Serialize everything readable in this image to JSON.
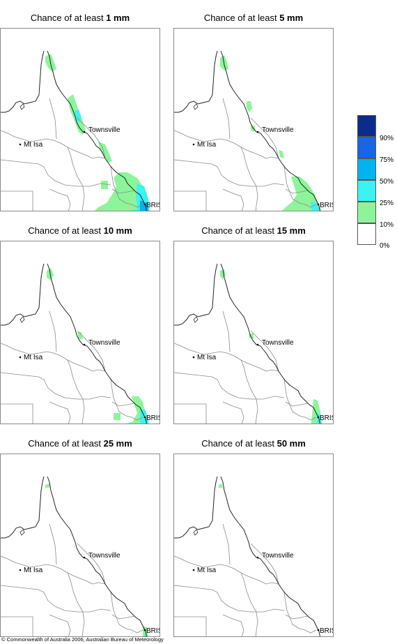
{
  "panels": [
    {
      "title_prefix": "Chance of at least ",
      "threshold": "1 mm",
      "level": 0
    },
    {
      "title_prefix": "Chance of at least ",
      "threshold": "5 mm",
      "level": 1
    },
    {
      "title_prefix": "Chance of at least ",
      "threshold": "10 mm",
      "level": 2
    },
    {
      "title_prefix": "Chance of at least ",
      "threshold": "15 mm",
      "level": 3
    },
    {
      "title_prefix": "Chance of at least ",
      "threshold": "25 mm",
      "level": 4
    },
    {
      "title_prefix": "Chance of at least ",
      "threshold": "50 mm",
      "level": 5
    }
  ],
  "places": {
    "townsville": "Townsville",
    "mt_isa": "Mt Isa",
    "brisbane": "BRIS"
  },
  "legend": [
    {
      "label": "90%",
      "color": "#0a2d8c"
    },
    {
      "label": "75%",
      "color": "#1a64e6"
    },
    {
      "label": "50%",
      "color": "#00b4f0"
    },
    {
      "label": "25%",
      "color": "#3cf2f2"
    },
    {
      "label": "10%",
      "color": "#8cf59a"
    },
    {
      "label": "0%",
      "color": "#ffffff"
    }
  ],
  "colors": {
    "coast": "#222222",
    "border": "#8a8a8a"
  },
  "copyright": "© Commonwealth of Australia 2006, Australian Bureau of Meteorology"
}
